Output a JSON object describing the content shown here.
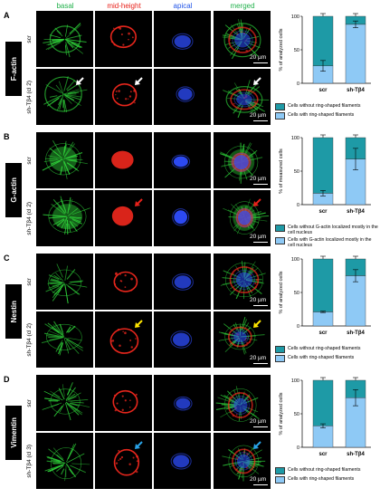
{
  "column_headers": [
    {
      "label": "basal",
      "color": "#22b14c"
    },
    {
      "label": "mid-height",
      "color": "#e8211a"
    },
    {
      "label": "apical",
      "color": "#2255e8"
    },
    {
      "label": "merged",
      "color": "#22b14c"
    }
  ],
  "scale_bar_label": "20 µm",
  "panels": [
    {
      "letter": "A",
      "marker": "F-actin",
      "row_labels": [
        "scr",
        "sh-Tβ4 (cl 2)"
      ],
      "arrow_color": "#ffffff"
    },
    {
      "letter": "B",
      "marker": "G-actin",
      "row_labels": [
        "scr",
        "sh-Tβ4 (cl 2)"
      ],
      "arrow_color": "#e8211a"
    },
    {
      "letter": "C",
      "marker": "Nestin",
      "row_labels": [
        "scr",
        "sh-Tβ4 (cl 2)"
      ],
      "arrow_color": "#ffe600"
    },
    {
      "letter": "D",
      "marker": "Vimentin",
      "row_labels": [
        "scr",
        "sh-Tβ4 (cl 3)"
      ],
      "arrow_color": "#29a3e8"
    }
  ],
  "chart_data": [
    {
      "type": "bar",
      "stacked": true,
      "categories": [
        "scr",
        "sh-Tβ4"
      ],
      "ylabel": "% of analyzed cells",
      "ylim": [
        0,
        100
      ],
      "yticks": [
        0,
        50,
        100
      ],
      "series": [
        {
          "name": "Cells with ring-shaped filaments",
          "color": "#8ec9f5",
          "values": [
            26,
            88
          ]
        },
        {
          "name": "Cells without ring-shaped filaments",
          "color": "#1e9aa6",
          "values": [
            74,
            12
          ]
        }
      ],
      "significance": {
        "sh-Tβ4": "****"
      },
      "error": [
        8,
        5
      ]
    },
    {
      "type": "bar",
      "stacked": true,
      "categories": [
        "scr",
        "sh-Tβ4"
      ],
      "ylabel": "% of measured cells",
      "ylim": [
        0,
        100
      ],
      "yticks": [
        0,
        50,
        100
      ],
      "series": [
        {
          "name": "Cells with G-actin localized mostly in the cell nucleus",
          "color": "#8ec9f5",
          "values": [
            17,
            68
          ]
        },
        {
          "name": "Cells without G-actin localized mostly in the cell nucleus",
          "color": "#1e9aa6",
          "values": [
            83,
            32
          ]
        }
      ],
      "significance": {
        "sh-Tβ4": "**"
      },
      "error": [
        4,
        16
      ]
    },
    {
      "type": "bar",
      "stacked": true,
      "categories": [
        "scr",
        "sh-Tβ4"
      ],
      "ylabel": "% of analyzed cells",
      "ylim": [
        0,
        100
      ],
      "yticks": [
        0,
        50,
        100
      ],
      "series": [
        {
          "name": "Cells with ring-shaped filaments",
          "color": "#8ec9f5",
          "values": [
            21,
            75
          ]
        },
        {
          "name": "Cells without ring-shaped filaments",
          "color": "#1e9aa6",
          "values": [
            79,
            25
          ]
        }
      ],
      "significance": {
        "sh-Tβ4": "***"
      },
      "error": [
        1,
        9
      ]
    },
    {
      "type": "bar",
      "stacked": true,
      "categories": [
        "scr",
        "sh-Tβ4"
      ],
      "ylabel": "% of analyzed cells",
      "ylim": [
        0,
        100
      ],
      "yticks": [
        0,
        50,
        100
      ],
      "series": [
        {
          "name": "Cells with ring-shaped filaments",
          "color": "#8ec9f5",
          "values": [
            32,
            74
          ]
        },
        {
          "name": "Cells without ring-shaped filaments",
          "color": "#1e9aa6",
          "values": [
            68,
            26
          ]
        }
      ],
      "significance": {
        "sh-Tβ4": "**"
      },
      "error": [
        3,
        12
      ]
    }
  ]
}
